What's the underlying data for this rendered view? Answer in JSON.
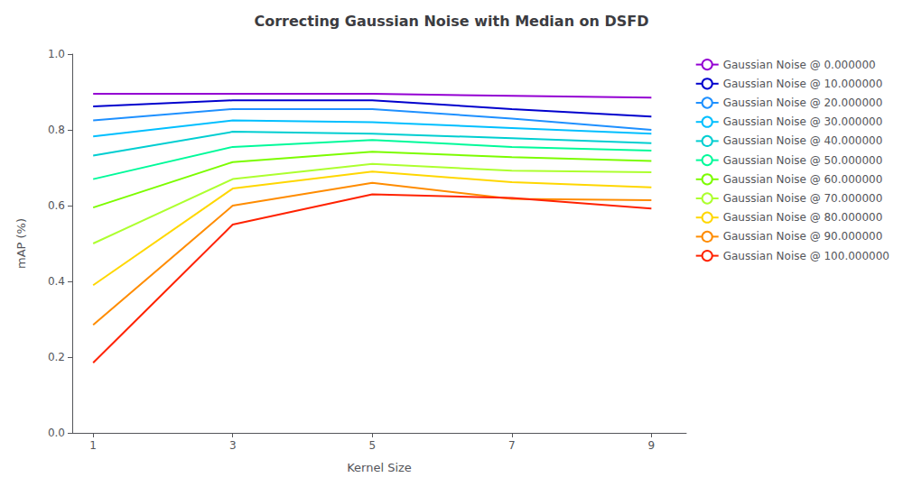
{
  "chart_data": {
    "type": "line",
    "title": "Correcting Gaussian Noise with Median on DSFD",
    "xlabel": "Kernel Size",
    "ylabel": "mAP (%)",
    "x": [
      1,
      3,
      5,
      7,
      9
    ],
    "xlim": [
      0.7,
      9.5
    ],
    "xticks": [
      1,
      3,
      5,
      7,
      9
    ],
    "ylim": [
      0.0,
      1.0
    ],
    "yticks": [
      {
        "value": 0.0,
        "label": "0.0"
      },
      0.2,
      0.4,
      0.6,
      0.8,
      {
        "value": 1.0,
        "label": "1.0"
      }
    ],
    "grid": false,
    "legend": "right",
    "series": [
      {
        "name": "Gaussian Noise @ 0.000000",
        "color": "#9400D3",
        "values": [
          0.895,
          0.895,
          0.895,
          0.89,
          0.885
        ]
      },
      {
        "name": "Gaussian Noise @ 10.000000",
        "color": "#0000CD",
        "values": [
          0.862,
          0.878,
          0.878,
          0.855,
          0.835
        ]
      },
      {
        "name": "Gaussian Noise @ 20.000000",
        "color": "#1E90FF",
        "values": [
          0.825,
          0.855,
          0.855,
          0.83,
          0.8
        ]
      },
      {
        "name": "Gaussian Noise @ 30.000000",
        "color": "#00BFFF",
        "values": [
          0.783,
          0.825,
          0.82,
          0.805,
          0.79
        ]
      },
      {
        "name": "Gaussian Noise @ 40.000000",
        "color": "#00CED1",
        "values": [
          0.732,
          0.795,
          0.79,
          0.778,
          0.765
        ]
      },
      {
        "name": "Gaussian Noise @ 50.000000",
        "color": "#00FA9A",
        "values": [
          0.67,
          0.755,
          0.773,
          0.755,
          0.745
        ]
      },
      {
        "name": "Gaussian Noise @ 60.000000",
        "color": "#7CFC00",
        "values": [
          0.595,
          0.715,
          0.742,
          0.728,
          0.718
        ]
      },
      {
        "name": "Gaussian Noise @ 70.000000",
        "color": "#ADFF2F",
        "values": [
          0.5,
          0.67,
          0.71,
          0.692,
          0.688
        ]
      },
      {
        "name": "Gaussian Noise @ 80.000000",
        "color": "#FFD700",
        "values": [
          0.39,
          0.645,
          0.69,
          0.662,
          0.648
        ]
      },
      {
        "name": "Gaussian Noise @ 90.000000",
        "color": "#FF8C00",
        "values": [
          0.285,
          0.6,
          0.66,
          0.618,
          0.614
        ]
      },
      {
        "name": "Gaussian Noise @ 100.000000",
        "color": "#FF2200",
        "values": [
          0.185,
          0.55,
          0.63,
          0.62,
          0.592
        ]
      }
    ]
  }
}
